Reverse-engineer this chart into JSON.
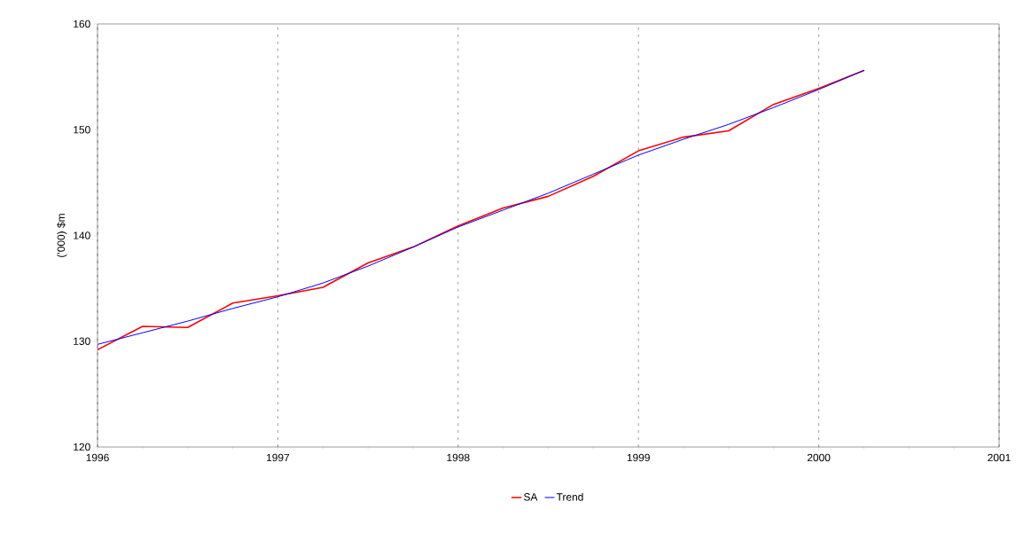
{
  "chart_data": {
    "type": "line",
    "ylabel": "('000) $m",
    "x": [
      1996,
      1996.25,
      1996.5,
      1996.75,
      1997,
      1997.25,
      1997.5,
      1997.75,
      1998,
      1998.25,
      1998.5,
      1998.75,
      1999,
      1999.25,
      1999.5,
      1999.75,
      2000,
      2000.25
    ],
    "series": [
      {
        "name": "SA",
        "color": "#ff0000",
        "values": [
          129.2,
          131.4,
          131.3,
          133.6,
          134.3,
          135.1,
          137.4,
          138.9,
          140.9,
          142.6,
          143.7,
          145.6,
          148.0,
          149.3,
          149.9,
          152.4,
          153.9,
          155.6
        ]
      },
      {
        "name": "Trend",
        "color": "#0000ff",
        "values": [
          129.7,
          130.8,
          131.9,
          133.1,
          134.2,
          135.5,
          137.1,
          138.9,
          140.8,
          142.4,
          144.0,
          145.8,
          147.6,
          149.1,
          150.5,
          152.1,
          153.8,
          155.6
        ]
      }
    ],
    "xlim": [
      1996,
      2001
    ],
    "xticks": [
      1996,
      1997,
      1998,
      1999,
      2000,
      2001
    ],
    "ylim": [
      120,
      160
    ],
    "yticks": [
      120,
      130,
      140,
      150,
      160
    ],
    "grid": "x",
    "legend": "bottom",
    "marker": "none",
    "line_style": "solid"
  }
}
